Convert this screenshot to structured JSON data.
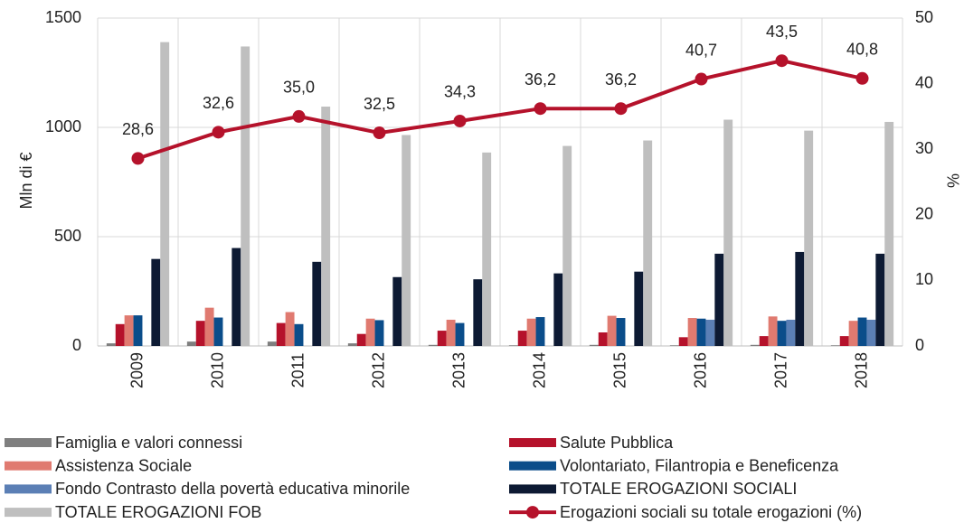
{
  "chart_data": {
    "type": "bar",
    "categories": [
      "2009",
      "2010",
      "2011",
      "2012",
      "2013",
      "2014",
      "2015",
      "2016",
      "2017",
      "2018"
    ],
    "y_label": "Mln di €",
    "y2_label": "%",
    "ylim": [
      0,
      1500
    ],
    "yticks": [
      0,
      500,
      1000,
      1500
    ],
    "y2lim": [
      0,
      50
    ],
    "y2ticks": [
      0,
      10,
      20,
      30,
      40,
      50
    ],
    "grid": true,
    "series": [
      {
        "name": "Famiglia e valori connessi",
        "color": "#7f7f7f",
        "values": [
          12,
          20,
          20,
          12,
          5,
          3,
          5,
          3,
          5,
          3
        ]
      },
      {
        "name": "Salute Pubblica",
        "color": "#b5122b",
        "values": [
          100,
          115,
          105,
          55,
          70,
          70,
          62,
          40,
          45,
          45
        ]
      },
      {
        "name": "Assistenza Sociale",
        "color": "#e07a70",
        "values": [
          140,
          175,
          155,
          125,
          120,
          125,
          138,
          128,
          135,
          115
        ]
      },
      {
        "name": "Volontariato, Filantropia e Beneficenza",
        "color": "#0b4d8a",
        "values": [
          140,
          130,
          100,
          118,
          105,
          132,
          128,
          125,
          115,
          130
        ]
      },
      {
        "name": "Fondo Contrasto della povertà educativa minorile",
        "color": "#5b7fb5",
        "values": [
          null,
          null,
          null,
          null,
          null,
          null,
          null,
          120,
          120,
          120
        ]
      },
      {
        "name": "TOTALE EROGAZIONI SOCIALI",
        "color": "#0d1a33",
        "values": [
          398,
          448,
          385,
          315,
          305,
          332,
          340,
          422,
          430,
          422
        ]
      },
      {
        "name": "TOTALE EROGAZIONI FOB",
        "color": "#bfbfbf",
        "values": [
          1390,
          1370,
          1095,
          965,
          885,
          915,
          940,
          1035,
          985,
          1025
        ]
      },
      {
        "name": "Erogazioni sociali su totale erogazioni (%)",
        "color": "#b5122b",
        "type": "line",
        "axis": "y2",
        "values": [
          28.6,
          32.6,
          35.0,
          32.5,
          34.3,
          36.2,
          36.2,
          40.7,
          43.5,
          40.8
        ],
        "value_labels": [
          "28,6",
          "32,6",
          "35,0",
          "32,5",
          "34,3",
          "36,2",
          "36,2",
          "40,7",
          "43,5",
          "40,8"
        ]
      }
    ]
  }
}
